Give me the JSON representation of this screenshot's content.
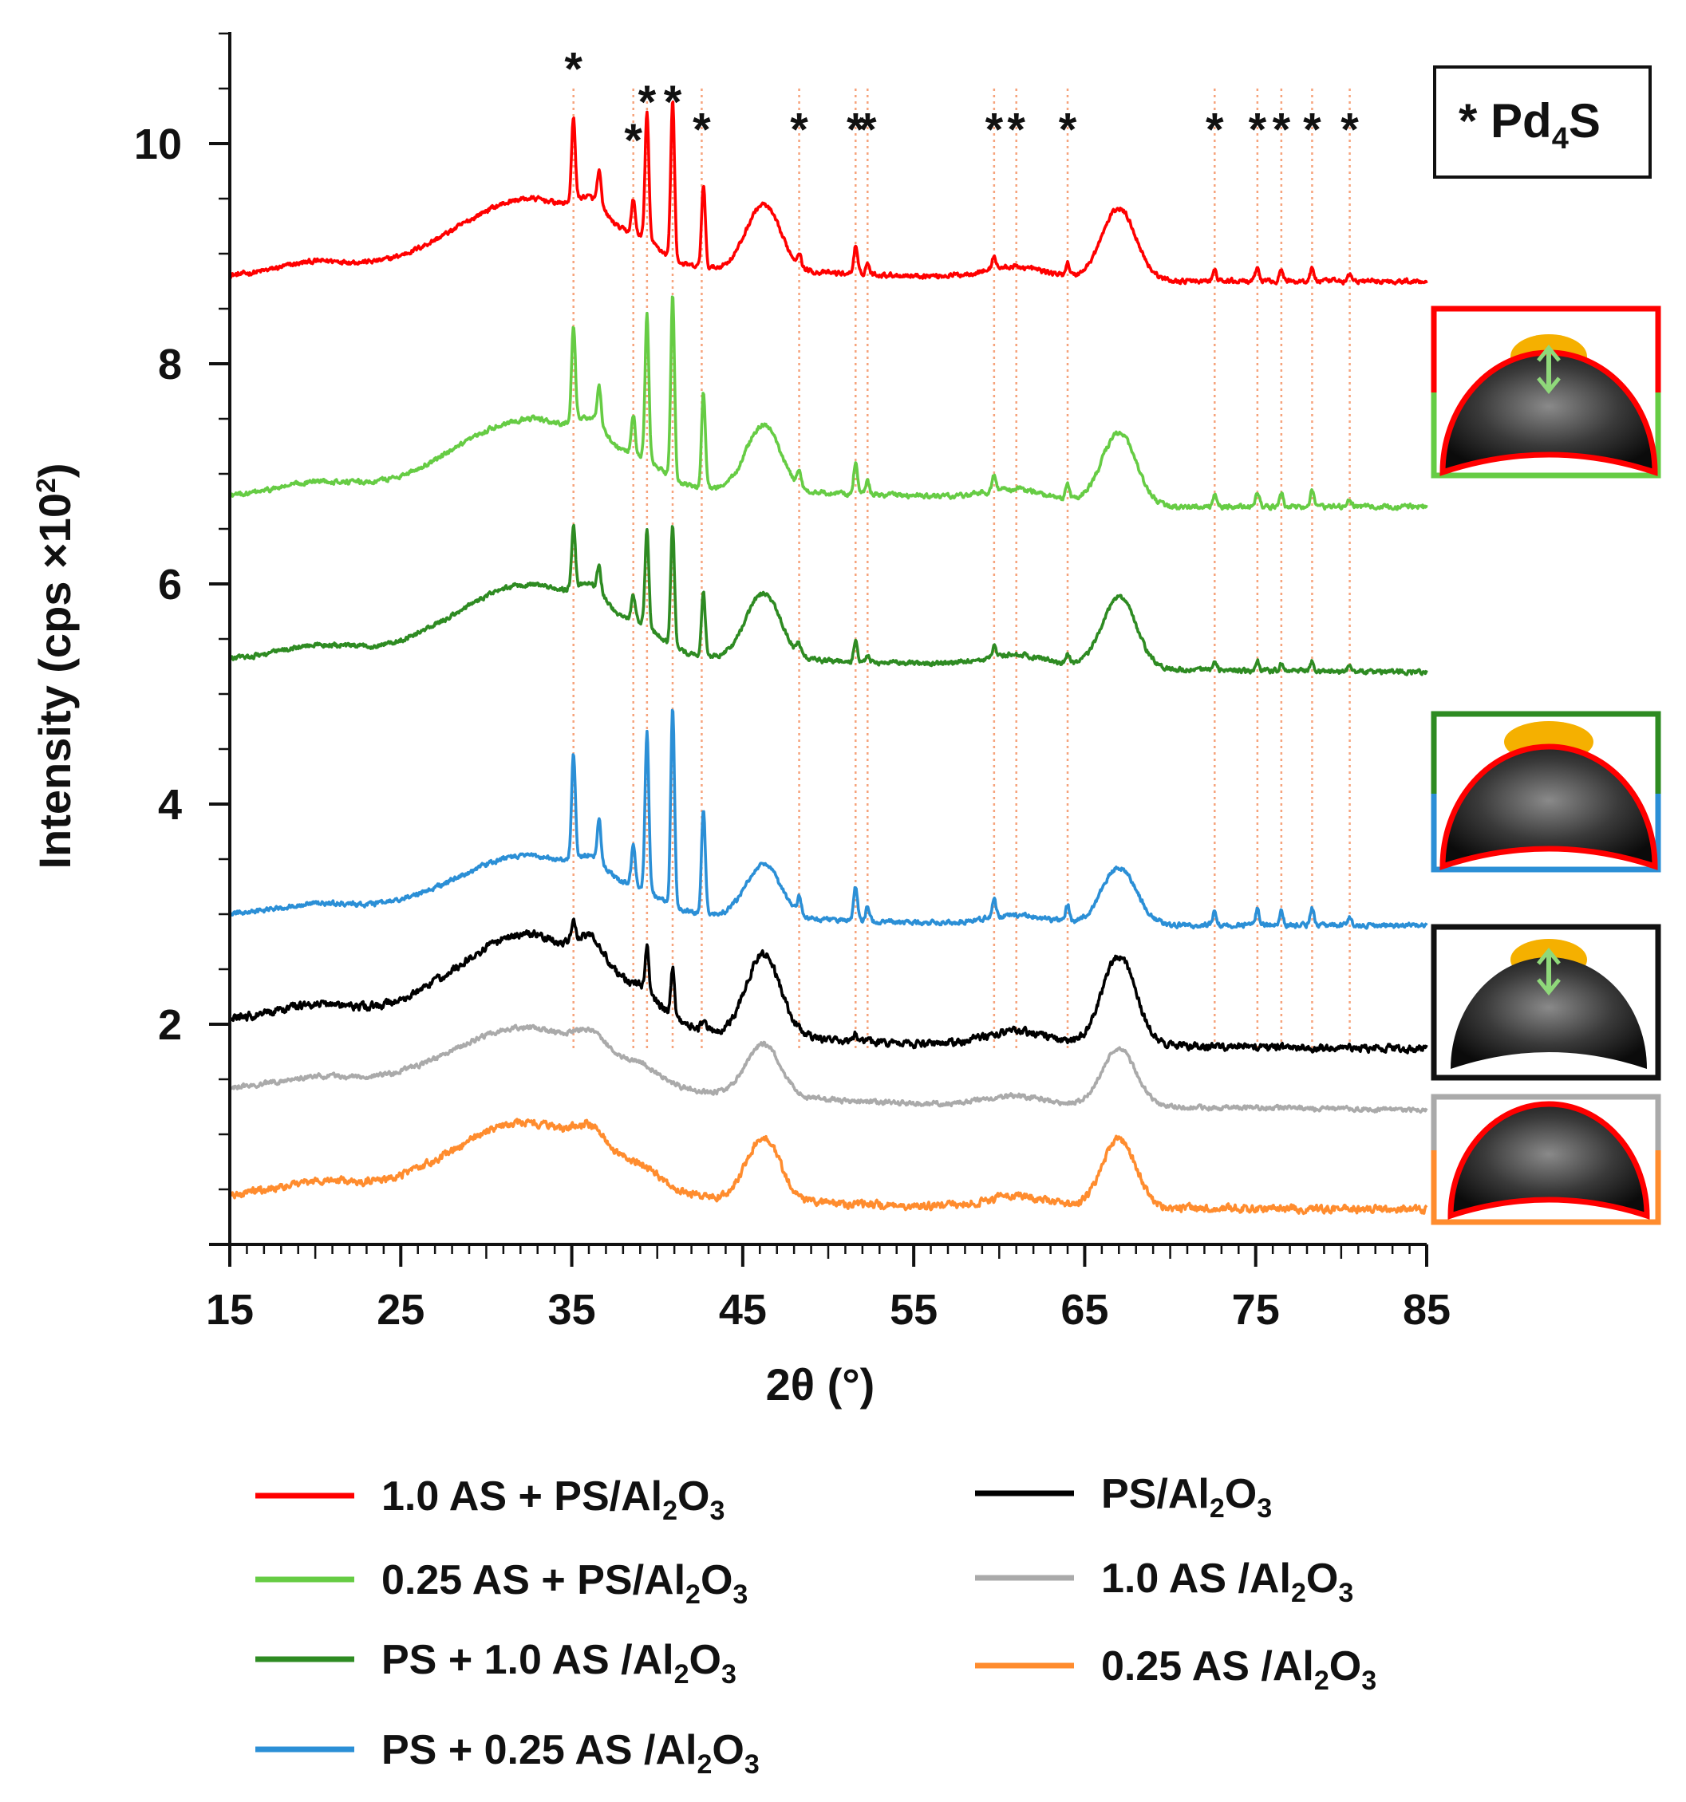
{
  "chart_data": {
    "type": "line",
    "title": "",
    "xlabel": "2θ (°)",
    "ylabel": "Intensity (cps ×10²)",
    "xlim": [
      15,
      85
    ],
    "ylim": [
      0,
      11
    ],
    "xticks": [
      15,
      25,
      35,
      45,
      55,
      65,
      75,
      85
    ],
    "yticks": [
      2,
      4,
      6,
      8,
      10
    ],
    "grid": false,
    "phase_label": {
      "star": "*",
      "text": "Pd",
      "sub": "4",
      "suffix": "S"
    },
    "marker_symbol": "*",
    "reference_lines": [
      35.1,
      38.6,
      39.4,
      40.9,
      42.6,
      48.3,
      51.6,
      52.3,
      59.7,
      61.0,
      64.0,
      72.6,
      75.1,
      76.5,
      78.3,
      80.5
    ],
    "series": [
      {
        "name": "1.0 AS + PS/Al2O3",
        "label_pre": "1.0 AS + PS/Al",
        "label_mid": "O",
        "color": "#ff0000",
        "baseline": [
          [
            15,
            8.8
          ],
          [
            30,
            8.95
          ],
          [
            45,
            8.85
          ],
          [
            55,
            8.8
          ],
          [
            70,
            8.75
          ],
          [
            85,
            8.75
          ]
        ],
        "bump_scale": 1.0,
        "sharp_scale": 1.0,
        "sharp_style": "pd4s"
      },
      {
        "name": "0.25 AS + PS/Al2O3",
        "label_pre": "0.25 AS + PS/Al",
        "label_mid": "O",
        "color": "#66cc44",
        "baseline": [
          [
            15,
            6.8
          ],
          [
            30,
            6.95
          ],
          [
            45,
            6.85
          ],
          [
            55,
            6.8
          ],
          [
            70,
            6.7
          ],
          [
            85,
            6.7
          ]
        ],
        "bump_scale": 1.0,
        "sharp_scale": 1.15,
        "sharp_style": "pd4s"
      },
      {
        "name": "PS + 1.0 AS /Al2O3",
        "label_pre": "PS + 1.0 AS /Al",
        "label_mid": "O",
        "color": "#2e8b22",
        "baseline": [
          [
            15,
            5.32
          ],
          [
            30,
            5.45
          ],
          [
            45,
            5.32
          ],
          [
            55,
            5.28
          ],
          [
            70,
            5.22
          ],
          [
            85,
            5.2
          ]
        ],
        "bump_scale": 1.0,
        "sharp_scale": 0.75,
        "sharp_style": "pd4s"
      },
      {
        "name": "PS + 0.25 AS /Al2O3",
        "label_pre": "PS + 0.25 AS /Al",
        "label_mid": "O",
        "color": "#2b8fd6",
        "baseline": [
          [
            15,
            3.0
          ],
          [
            30,
            3.1
          ],
          [
            45,
            2.98
          ],
          [
            55,
            2.92
          ],
          [
            70,
            2.9
          ],
          [
            85,
            2.9
          ]
        ],
        "bump_scale": 0.8,
        "sharp_scale": 1.25,
        "sharp_style": "pd4s"
      },
      {
        "name": "PS/Al2O3",
        "label_pre": "PS/Al",
        "label_mid": "O",
        "color": "#000000",
        "baseline": [
          [
            15,
            2.05
          ],
          [
            30,
            2.15
          ],
          [
            45,
            1.9
          ],
          [
            55,
            1.82
          ],
          [
            70,
            1.8
          ],
          [
            85,
            1.78
          ]
        ],
        "bump_scale": 1.25,
        "sharp_scale": 0.45,
        "sharp_style": "pd"
      },
      {
        "name": "1.0 AS /Al2O3",
        "label_pre": "1.0 AS /Al",
        "label_mid": "O",
        "color": "#aaaaaa",
        "baseline": [
          [
            15,
            1.42
          ],
          [
            30,
            1.55
          ],
          [
            45,
            1.35
          ],
          [
            55,
            1.28
          ],
          [
            70,
            1.25
          ],
          [
            85,
            1.22
          ]
        ],
        "bump_scale": 0.8,
        "sharp_scale": 0,
        "sharp_style": "none"
      },
      {
        "name": "0.25 AS /Al2O3",
        "label_pre": "0.25 AS /Al",
        "label_mid": "O",
        "color": "#ff8c2e",
        "baseline": [
          [
            15,
            0.45
          ],
          [
            30,
            0.6
          ],
          [
            45,
            0.4
          ],
          [
            55,
            0.35
          ],
          [
            70,
            0.33
          ],
          [
            85,
            0.32
          ]
        ],
        "bump_scale": 0.95,
        "sharp_scale": 0,
        "sharp_style": "none"
      }
    ],
    "broad_peaks": [
      [
        33.0,
        0.55,
        3.2
      ],
      [
        36.2,
        0.25,
        0.9
      ],
      [
        39.0,
        0.18,
        1.2
      ],
      [
        46.2,
        0.6,
        1.0
      ],
      [
        67.0,
        0.65,
        1.0
      ],
      [
        61.0,
        0.1,
        1.8
      ],
      [
        20.0,
        0.08,
        2.0
      ],
      [
        28.0,
        0.12,
        2.5
      ]
    ],
    "sharp_peaks_pd4s": [
      [
        35.1,
        0.75
      ],
      [
        36.6,
        0.3
      ],
      [
        38.6,
        0.3
      ],
      [
        39.4,
        1.15
      ],
      [
        40.9,
        1.45
      ],
      [
        42.7,
        0.75
      ],
      [
        48.3,
        0.12
      ],
      [
        51.6,
        0.25
      ],
      [
        52.3,
        0.1
      ],
      [
        59.7,
        0.12
      ],
      [
        64.0,
        0.12
      ],
      [
        72.6,
        0.1
      ],
      [
        75.1,
        0.12
      ],
      [
        76.5,
        0.1
      ],
      [
        78.3,
        0.12
      ],
      [
        80.5,
        0.06
      ]
    ],
    "sharp_peaks_pd": [
      [
        35.1,
        0.35
      ],
      [
        39.4,
        0.9
      ],
      [
        40.9,
        1.0
      ],
      [
        42.7,
        0.25
      ],
      [
        51.6,
        0.15
      ]
    ]
  }
}
